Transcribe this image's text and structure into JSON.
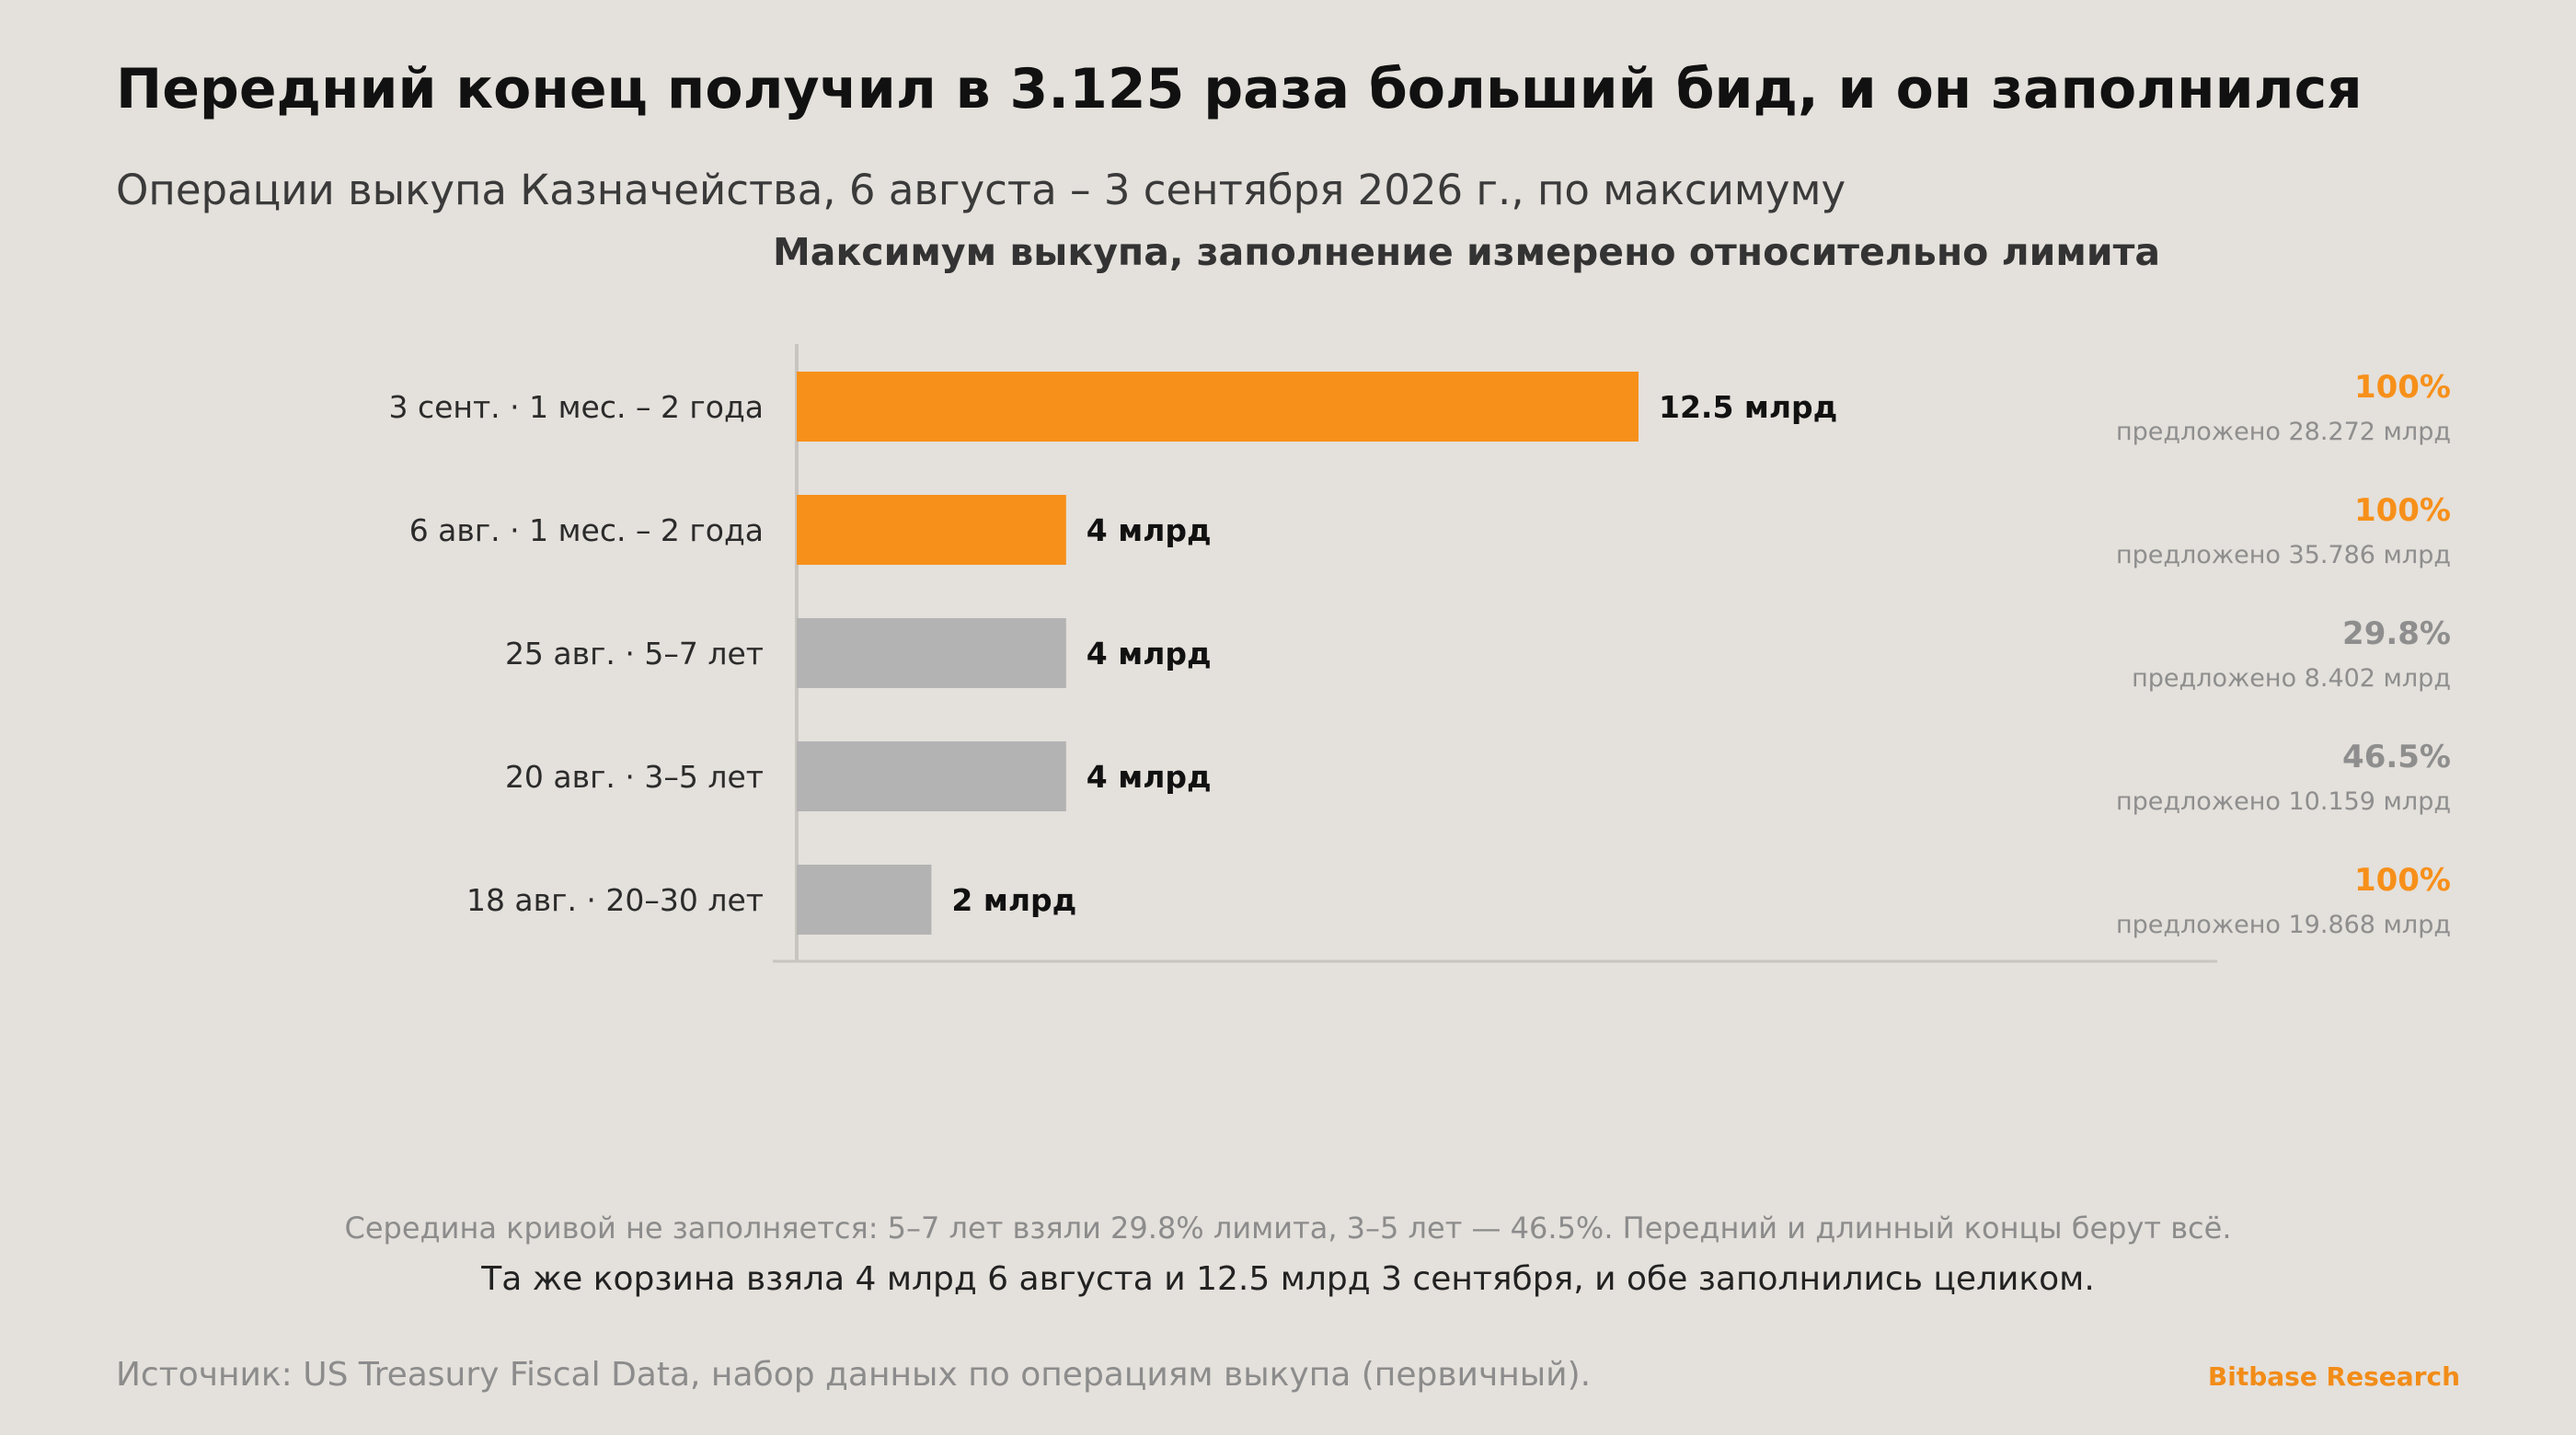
{
  "header": {
    "title": "Передний конец получил в 3.125 раза больший бид, и он заполнился",
    "subtitle": "Операции выкупа Казначейства, 6 августа – 3 сентября 2026 г., по максимуму"
  },
  "colors": {
    "accent": "#f7901a",
    "muted_bar": "#b3b3b3",
    "muted_text": "#8e8e8e",
    "axis": "#c8c4bf"
  },
  "chart_data": {
    "type": "bar",
    "orientation": "horizontal",
    "title": "Максимум выкупа, заполнение измерено относительно лимита",
    "xlim": [
      0,
      16.5
    ],
    "grid": false,
    "legend": "none",
    "rows": [
      {
        "label": "3 сент. · 1 мес. – 2 года",
        "value": 12.5,
        "value_label": "12.5 млрд",
        "fill_pct": "100%",
        "offered": "предложено 28.272 млрд",
        "highlight": true
      },
      {
        "label": "6 авг. · 1 мес. – 2 года",
        "value": 4,
        "value_label": "4 млрд",
        "fill_pct": "100%",
        "offered": "предложено 35.786 млрд",
        "highlight": true
      },
      {
        "label": "25 авг. · 5–7 лет",
        "value": 4,
        "value_label": "4 млрд",
        "fill_pct": "29.8%",
        "offered": "предложено 8.402 млрд",
        "highlight": false
      },
      {
        "label": "20 авг. · 3–5 лет",
        "value": 4,
        "value_label": "4 млрд",
        "fill_pct": "46.5%",
        "offered": "предложено 10.159 млрд",
        "highlight": false
      },
      {
        "label": "18 авг. · 20–30 лет",
        "value": 2,
        "value_label": "2 млрд",
        "fill_pct": "100%",
        "offered": "предложено 19.868 млрд",
        "highlight": false,
        "fill_highlight": true
      }
    ]
  },
  "notes": {
    "line1": "Середина кривой не заполняется: 5–7 лет взяли 29.8% лимита, 3–5 лет — 46.5%. Передний и длинный концы берут всё.",
    "line2": "Та же корзина взяла 4 млрд 6 августа и 12.5 млрд 3 сентября, и обе заполнились целиком."
  },
  "footer": {
    "source": "Источник: US Treasury Fiscal Data, набор данных по операциям выкупа (первичный).",
    "brand": "Bitbase Research"
  }
}
